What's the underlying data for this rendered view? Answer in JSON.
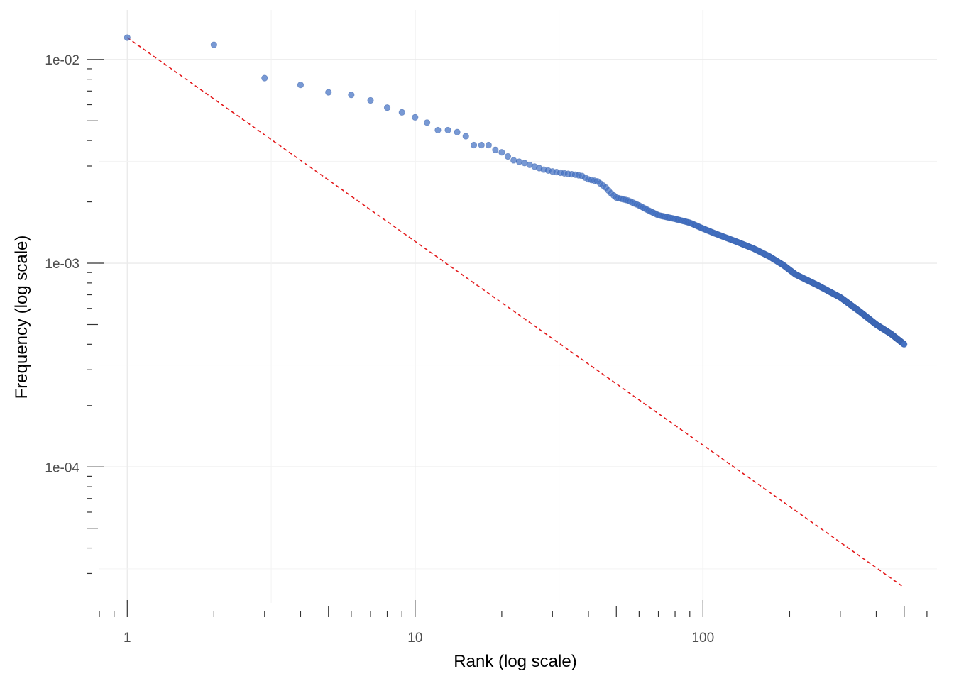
{
  "chart_data": {
    "type": "scatter",
    "xlabel": "Rank (log scale)",
    "ylabel": "Frequency (log scale)",
    "x_scale": "log10",
    "y_scale": "log10",
    "xlim": [
      0.8,
      650
    ],
    "ylim": [
      2.15e-05,
      0.0175
    ],
    "x_ticks": [
      {
        "value": 1,
        "label": "1"
      },
      {
        "value": 10,
        "label": "10"
      },
      {
        "value": 100,
        "label": "100"
      }
    ],
    "y_ticks": [
      {
        "value": 0.01,
        "label": "1e-02"
      },
      {
        "value": 0.001,
        "label": "1e-03"
      },
      {
        "value": 0.0001,
        "label": "1e-04"
      }
    ],
    "grid": true,
    "series": [
      {
        "marker": "circle",
        "color": "#4472c4",
        "opacity": 0.72,
        "points": [
          [
            1,
            0.0128
          ],
          [
            2,
            0.0118
          ],
          [
            3,
            0.0081
          ],
          [
            4,
            0.0075
          ],
          [
            5,
            0.0069
          ],
          [
            6,
            0.0067
          ],
          [
            7,
            0.0063
          ],
          [
            8,
            0.0058
          ],
          [
            9,
            0.0055
          ],
          [
            10,
            0.0052
          ],
          [
            11,
            0.0049
          ],
          [
            12,
            0.0045
          ],
          [
            13,
            0.0045
          ],
          [
            14,
            0.0044
          ],
          [
            15,
            0.0042
          ],
          [
            16,
            0.0038
          ],
          [
            17,
            0.0038
          ],
          [
            18,
            0.0038
          ],
          [
            19,
            0.0036
          ],
          [
            20,
            0.0035
          ],
          [
            22,
            0.0032
          ],
          [
            24,
            0.0031
          ],
          [
            26,
            0.00298
          ],
          [
            28,
            0.00288
          ],
          [
            30,
            0.00282
          ],
          [
            33,
            0.00276
          ],
          [
            36,
            0.00272
          ],
          [
            38,
            0.00268
          ],
          [
            40,
            0.00258
          ],
          [
            43,
            0.00252
          ],
          [
            46,
            0.00235
          ],
          [
            48,
            0.0022
          ],
          [
            50,
            0.0021
          ],
          [
            55,
            0.00203
          ],
          [
            60,
            0.00192
          ],
          [
            65,
            0.00181
          ],
          [
            70,
            0.00172
          ],
          [
            80,
            0.00165
          ],
          [
            90,
            0.00158
          ],
          [
            100,
            0.00148
          ],
          [
            110,
            0.0014
          ],
          [
            130,
            0.00128
          ],
          [
            150,
            0.00118
          ],
          [
            170,
            0.00108
          ],
          [
            190,
            0.00098
          ],
          [
            210,
            0.00088
          ],
          [
            250,
            0.00078
          ],
          [
            300,
            0.00068
          ],
          [
            350,
            0.00058
          ],
          [
            400,
            0.0005
          ],
          [
            450,
            0.00045
          ],
          [
            500,
            0.0004
          ]
        ]
      }
    ],
    "reference_line": {
      "style": "dashed",
      "color": "#e31a1c",
      "x": [
        1,
        500
      ],
      "y": [
        0.0128,
        2.56e-05
      ]
    }
  }
}
